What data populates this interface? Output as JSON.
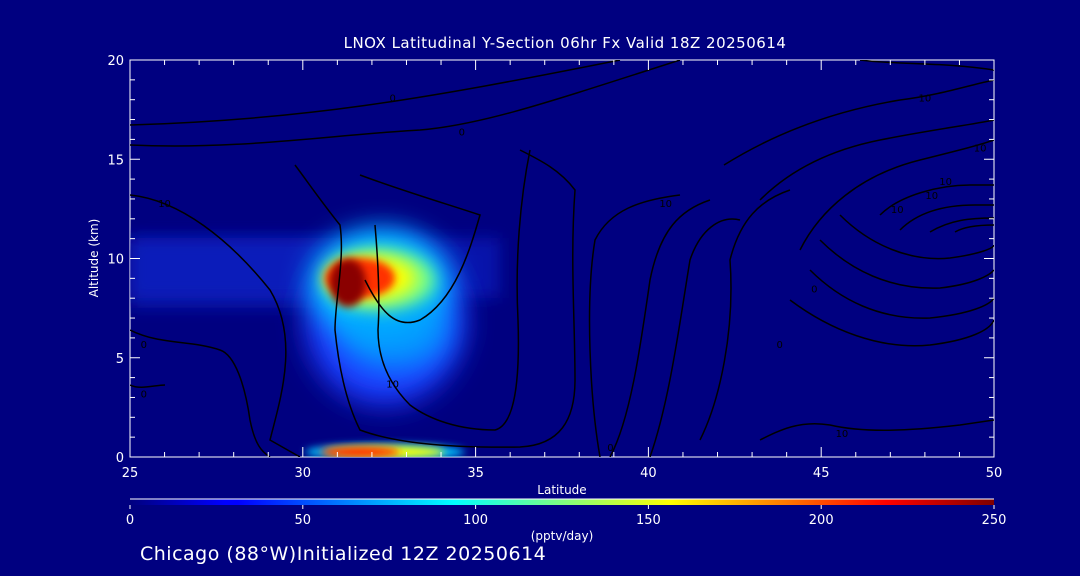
{
  "chart_data": {
    "type": "heatmap",
    "title": "LNOX Latitudinal Y-Section 06hr  Fx Valid 18Z 20250614",
    "xlabel": "Latitude",
    "ylabel": "Altitude (km)",
    "xlim": [
      25,
      50
    ],
    "ylim": [
      0,
      20
    ],
    "x_ticks": [
      25,
      30,
      35,
      40,
      45,
      50
    ],
    "y_ticks": [
      0,
      5,
      10,
      15,
      20
    ],
    "colorbar": {
      "label": "(pptv/day)",
      "range": [
        0,
        250
      ],
      "ticks": [
        0,
        50,
        100,
        150,
        200,
        250
      ]
    },
    "hotspots": [
      {
        "lat": 30.9,
        "alt": 8.7,
        "value": 250
      },
      {
        "lat": 32.3,
        "alt": 9.0,
        "value": 200
      },
      {
        "lat": 33.4,
        "alt": 7.5,
        "value": 120
      },
      {
        "lat": 32.6,
        "alt": 4.5,
        "value": 80
      },
      {
        "lat": 31.5,
        "alt": 0.2,
        "value": 250
      }
    ],
    "contour_labels": [
      {
        "lat": 26.0,
        "alt": 12.8,
        "text": "10"
      },
      {
        "lat": 25.4,
        "alt": 5.7,
        "text": "0"
      },
      {
        "lat": 25.4,
        "alt": 3.2,
        "text": "0"
      },
      {
        "lat": 32.6,
        "alt": 3.7,
        "text": "10"
      },
      {
        "lat": 34.6,
        "alt": 16.4,
        "text": "0"
      },
      {
        "lat": 32.6,
        "alt": 18.1,
        "text": "0"
      },
      {
        "lat": 40.5,
        "alt": 12.8,
        "text": "10"
      },
      {
        "lat": 38.9,
        "alt": 0.5,
        "text": "0"
      },
      {
        "lat": 43.8,
        "alt": 5.7,
        "text": "0"
      },
      {
        "lat": 44.8,
        "alt": 8.5,
        "text": "0"
      },
      {
        "lat": 45.6,
        "alt": 1.2,
        "text": "10"
      },
      {
        "lat": 47.2,
        "alt": 12.5,
        "text": "10"
      },
      {
        "lat": 48.2,
        "alt": 13.2,
        "text": "10"
      },
      {
        "lat": 48.6,
        "alt": 13.9,
        "text": "10"
      },
      {
        "lat": 49.6,
        "alt": 15.6,
        "text": "10"
      },
      {
        "lat": 48.0,
        "alt": 18.1,
        "text": "10"
      }
    ]
  },
  "footer": "Chicago (88°W)Initialized 12Z 20250614"
}
